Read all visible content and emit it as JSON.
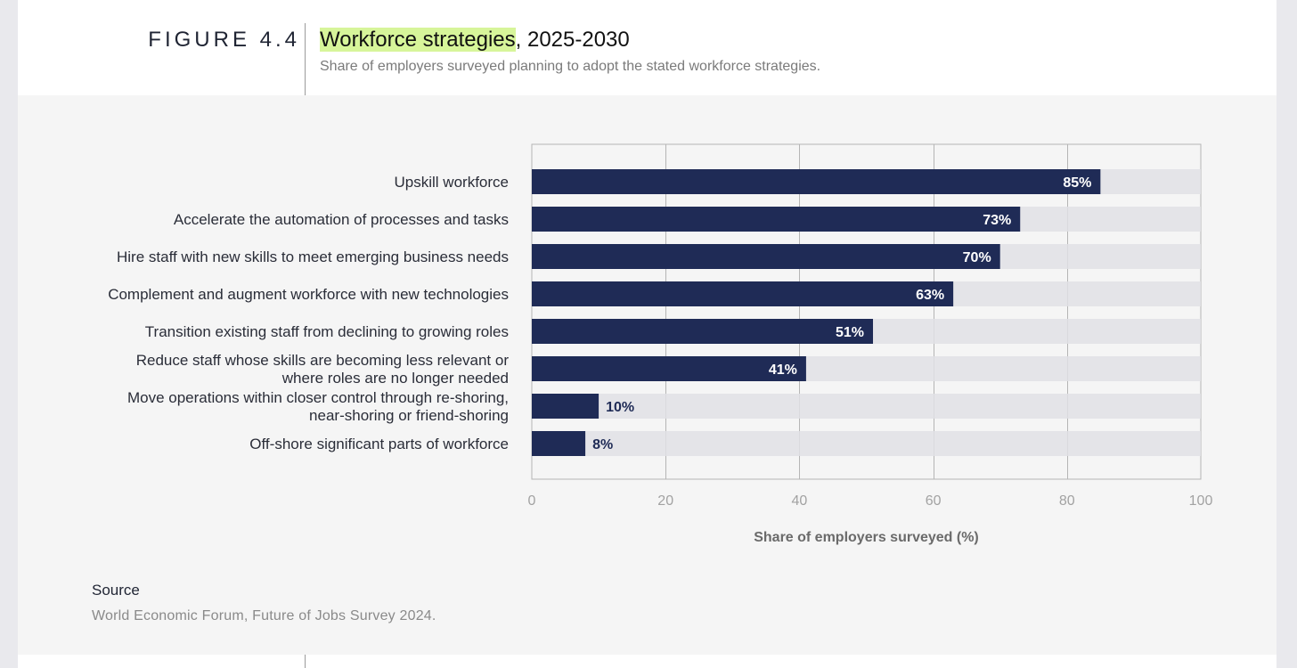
{
  "figure": {
    "label": "FIGURE 4.4",
    "title_highlight": "Workforce strategies",
    "title_rest": ", 2025-2030",
    "subtitle": "Share of employers surveyed planning to adopt the stated workforce strategies."
  },
  "colors": {
    "bar": "#1f2b56",
    "track": "#e1e1e5",
    "highlight": "#d7f59a",
    "gridline": "#b5b5b5"
  },
  "chart_data": {
    "type": "bar",
    "orientation": "horizontal",
    "categories": [
      [
        "Upskill workforce"
      ],
      [
        "Accelerate the automation of processes and tasks"
      ],
      [
        "Hire staff with new skills to meet emerging business needs"
      ],
      [
        "Complement and augment workforce with new technologies"
      ],
      [
        "Transition existing staff from declining to growing roles"
      ],
      [
        "Reduce staff whose skills are becoming less relevant or",
        "where roles are no longer needed"
      ],
      [
        "Move operations within closer control through re-shoring,",
        "near-shoring or friend-shoring"
      ],
      [
        "Off-shore significant parts of workforce"
      ]
    ],
    "values": [
      85,
      73,
      70,
      63,
      51,
      41,
      10,
      8
    ],
    "data_labels": [
      "85%",
      "73%",
      "70%",
      "63%",
      "51%",
      "41%",
      "10%",
      "8%"
    ],
    "xlim": [
      0,
      100
    ],
    "xticks": [
      0,
      20,
      40,
      60,
      80,
      100
    ],
    "xlabel": "Share of employers surveyed (%)",
    "grid": true
  },
  "source": {
    "label": "Source",
    "text": "World Economic Forum, Future of Jobs Survey 2024."
  }
}
